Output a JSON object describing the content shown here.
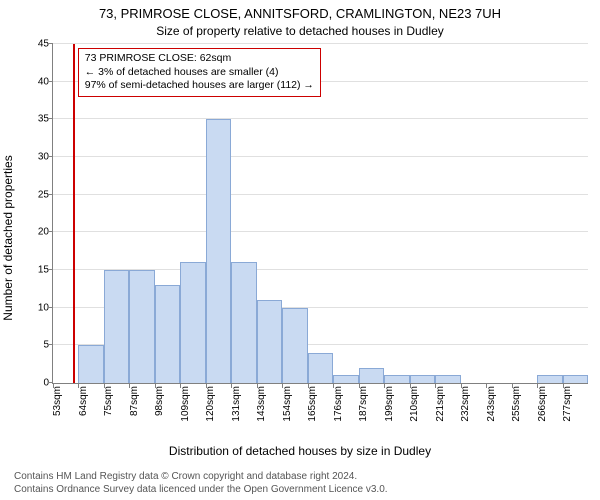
{
  "title": "73, PRIMROSE CLOSE, ANNITSFORD, CRAMLINGTON, NE23 7UH",
  "subtitle": "Size of property relative to detached houses in Dudley",
  "ylabel": "Number of detached properties",
  "xlabel": "Distribution of detached houses by size in Dudley",
  "attribution_line1": "Contains HM Land Registry data © Crown copyright and database right 2024.",
  "attribution_line2": "Contains Ordnance Survey data licenced under the Open Government Licence v3.0.",
  "chart": {
    "type": "histogram",
    "ylim": [
      0,
      45
    ],
    "ytick_step": 5,
    "yticks": [
      0,
      5,
      10,
      15,
      20,
      25,
      30,
      35,
      40,
      45
    ],
    "xtick_labels": [
      "53sqm",
      "64sqm",
      "75sqm",
      "87sqm",
      "98sqm",
      "109sqm",
      "120sqm",
      "131sqm",
      "143sqm",
      "154sqm",
      "165sqm",
      "176sqm",
      "187sqm",
      "199sqm",
      "210sqm",
      "221sqm",
      "232sqm",
      "243sqm",
      "255sqm",
      "266sqm",
      "277sqm"
    ],
    "bar_values": [
      0,
      5,
      15,
      15,
      13,
      16,
      35,
      16,
      11,
      10,
      4,
      1,
      2,
      1,
      1,
      1,
      0,
      0,
      0,
      1,
      1
    ],
    "bar_fill": "#c9daf2",
    "bar_stroke": "#8aa9d6",
    "grid_color": "#e0e0e0",
    "axis_color": "#808080",
    "background_color": "#ffffff",
    "marker": {
      "position_sqm": 62,
      "color": "#cc0000"
    },
    "annotation": {
      "line1": "73 PRIMROSE CLOSE: 62sqm",
      "line2": "← 3% of detached houses are smaller (4)",
      "line3": "97% of semi-detached houses are larger (112) →",
      "border_color": "#cc0000",
      "background": "#ffffff"
    },
    "label_fontsize": 12,
    "tick_fontsize": 10
  }
}
